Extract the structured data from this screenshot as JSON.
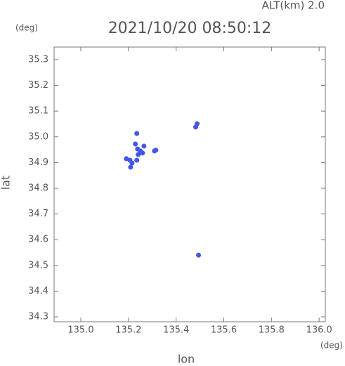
{
  "chart_data": {
    "type": "scatter",
    "title": "2021/10/20 08:50:12",
    "subtitle": "ALT(km) 2.0",
    "y_unit": "(deg)",
    "x_unit": "(deg)",
    "x_label": "lon",
    "y_label": "lat",
    "xlim": [
      134.888,
      136.026
    ],
    "ylim": [
      34.281,
      35.349
    ],
    "xticks": [
      {
        "value": 135,
        "label": "135.0"
      },
      135.2,
      135.4,
      135.6,
      135.8,
      {
        "value": 136,
        "label": "136.0"
      }
    ],
    "yticks": [
      34.3,
      34.4,
      34.5,
      34.6,
      34.7,
      34.8,
      34.9,
      {
        "value": 35,
        "label": "35.0"
      },
      35.1,
      35.2,
      35.3
    ],
    "series": [
      {
        "color": "#4455ee",
        "x": [
          135.235,
          135.229,
          135.238,
          135.25,
          135.259,
          135.241,
          135.206,
          135.191,
          135.215,
          135.235,
          135.265,
          135.309,
          135.209,
          135.488,
          135.482,
          135.494,
          135.315
        ],
        "values": [
          35.013,
          34.972,
          34.953,
          34.945,
          34.937,
          34.931,
          34.909,
          34.915,
          34.898,
          34.909,
          34.964,
          34.945,
          34.882,
          35.051,
          35.038,
          34.54,
          34.948
        ]
      }
    ]
  }
}
